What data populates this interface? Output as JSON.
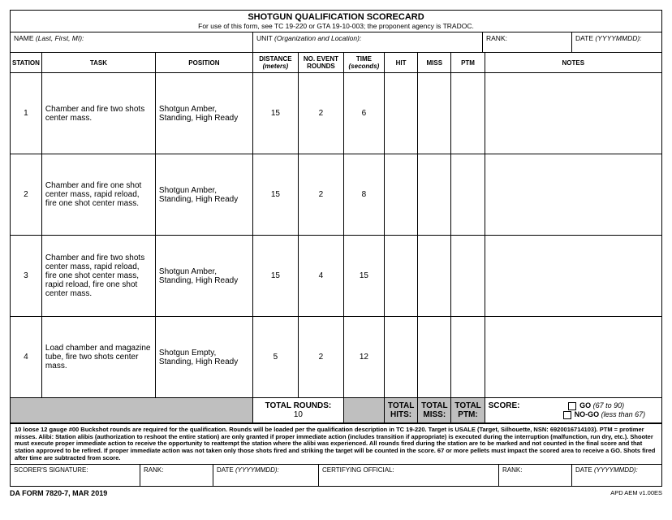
{
  "title": "SHOTGUN QUALIFICATION SCORECARD",
  "subtitle": "For use of this form, see TC 19-220 or GTA 19-10-003; the proponent agency is TRADOC.",
  "header_fields": {
    "name_label": "NAME ",
    "name_hint": "(Last, First, MI):",
    "unit_label": "UNIT ",
    "unit_hint": "(Organization and Location):",
    "rank_label": "RANK:",
    "date_label": "DATE ",
    "date_hint": "(YYYYMMDD):"
  },
  "columns": {
    "station": "STATION",
    "task": "TASK",
    "position": "POSITION",
    "distance_l1": "DISTANCE",
    "distance_l2": "(meters)",
    "rounds_l1": "NO. EVENT",
    "rounds_l2": "ROUNDS",
    "time_l1": "TIME",
    "time_l2": "(seconds)",
    "hit": "HIT",
    "miss": "MISS",
    "ptm": "PTM",
    "notes": "NOTES"
  },
  "rows": [
    {
      "station": "1",
      "task": "Chamber and fire two shots center mass.",
      "position": "Shotgun Amber, Standing, High Ready",
      "distance": "15",
      "rounds": "2",
      "time": "6"
    },
    {
      "station": "2",
      "task": "Chamber and fire one shot center mass, rapid reload, fire one shot center mass.",
      "position": "Shotgun Amber, Standing, High Ready",
      "distance": "15",
      "rounds": "2",
      "time": "8"
    },
    {
      "station": "3",
      "task": "Chamber and fire two shots center mass, rapid reload, fire one shot center mass, rapid reload, fire one shot center mass.",
      "position": "Shotgun Amber, Standing, High Ready",
      "distance": "15",
      "rounds": "4",
      "time": "15"
    },
    {
      "station": "4",
      "task": "Load chamber and magazine tube, fire two shots center mass.",
      "position": "Shotgun Empty, Standing, High Ready",
      "distance": "5",
      "rounds": "2",
      "time": "12"
    }
  ],
  "totals": {
    "total_rounds_label": "TOTAL ROUNDS:",
    "total_rounds_value": "10",
    "total_hits": "TOTAL HITS:",
    "total_miss": "TOTAL MISS:",
    "total_ptm": "TOTAL PTM:",
    "score_label": "SCORE:",
    "go_label": "GO",
    "go_hint": "(67 to 90)",
    "nogo_label": "NO-GO",
    "nogo_hint": "(less than 67)"
  },
  "fineprint": "10 loose 12 gauge #00 Buckshot rounds are required for the qualification. Rounds will be loaded per the qualification description in TC 19-220. Target is USALE (Target, Silhouette, NSN: 6920016714103). PTM = protimer misses. Alibi: Station alibis (authorization to reshoot the entire station) are only granted if proper immediate action (includes transition if appropriate) is executed during the interruption (malfunction, run dry, etc.). Shooter must execute proper immediate action to receive the opportunity to reattempt the station where the alibi was experienced. All rounds fired during the station are to be marked and not counted in the final score and that station approved to be refired. If proper immediate action was not taken only those shots fired and striking the target will be counted in the score. 67 or more pellets must impact the scored area to receive a GO. Shots fired after time are subtracted from score.",
  "signatures": {
    "scorer": "SCORER'S SIGNATURE:",
    "rank": "RANK:",
    "date_label": "DATE ",
    "date_hint": "(YYYYMMDD):",
    "certifying": "CERTIFYING OFFICIAL:"
  },
  "footer": {
    "left": "DA FORM 7820-7, MAR 2019",
    "right": "APD AEM v1.00ES"
  }
}
